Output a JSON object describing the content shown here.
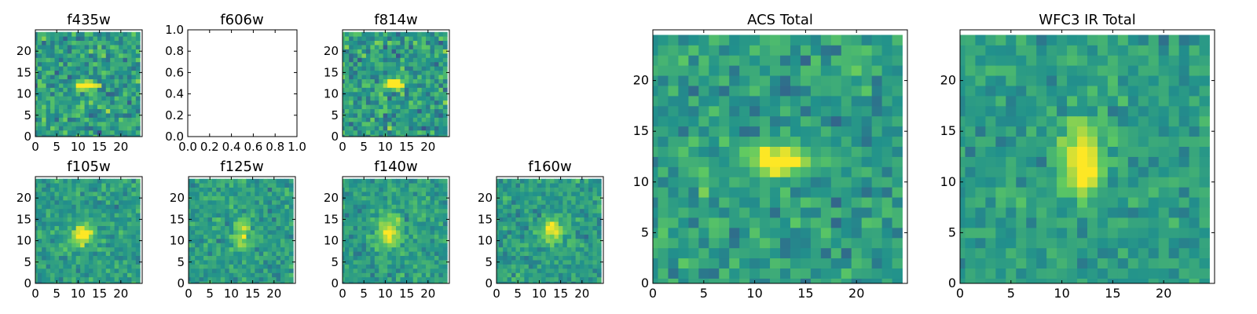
{
  "figure": {
    "description_note": "",
    "colormap_stops": [
      "#440154",
      "#3b528b",
      "#21918c",
      "#5ec962",
      "#fde725"
    ]
  },
  "chart_data": [
    {
      "type": "heatmap",
      "title": "f435w",
      "grid_size": 25,
      "xlim": [
        0,
        25
      ],
      "ylim": [
        0,
        25
      ],
      "xticks": [
        0,
        5,
        10,
        15,
        20
      ],
      "yticks": [
        0,
        5,
        10,
        15,
        20
      ],
      "source": {
        "cx": 12.5,
        "cy": 12.5,
        "sx": 1.4,
        "sy": 0.8,
        "amp": 0.75
      },
      "noise": 0.34,
      "seed": 11
    },
    {
      "type": "heatmap",
      "title": "f606w",
      "empty": true,
      "xlim": [
        0,
        1
      ],
      "ylim": [
        0,
        1
      ],
      "xticks": [
        "0.0",
        "0.2",
        "0.4",
        "0.6",
        "0.8",
        "1.0"
      ],
      "yticks": [
        "0.0",
        "0.2",
        "0.4",
        "0.6",
        "0.8",
        "1.0"
      ]
    },
    {
      "type": "heatmap",
      "title": "f814w",
      "grid_size": 25,
      "xlim": [
        0,
        25
      ],
      "ylim": [
        0,
        25
      ],
      "xticks": [
        0,
        5,
        10,
        15,
        20
      ],
      "yticks": [
        0,
        5,
        10,
        15,
        20
      ],
      "source": {
        "cx": 12.5,
        "cy": 13,
        "sx": 1.6,
        "sy": 0.7,
        "amp": 0.75
      },
      "noise": 0.34,
      "seed": 23
    },
    {
      "type": "heatmap",
      "title": "f105w",
      "grid_size": 25,
      "xlim": [
        0,
        25
      ],
      "ylim": [
        0,
        25
      ],
      "xticks": [
        0,
        5,
        10,
        15,
        20
      ],
      "yticks": [
        0,
        5,
        10,
        15,
        20
      ],
      "source": {
        "cx": 11.5,
        "cy": 12,
        "sx": 1.8,
        "sy": 1.8,
        "amp": 0.5
      },
      "noise": 0.22,
      "seed": 37
    },
    {
      "type": "heatmap",
      "title": "f125w",
      "grid_size": 25,
      "xlim": [
        0,
        25
      ],
      "ylim": [
        0,
        25
      ],
      "xticks": [
        0,
        5,
        10,
        15,
        20
      ],
      "yticks": [
        0,
        5,
        10,
        15,
        20
      ],
      "source": {
        "cx": 13,
        "cy": 12,
        "sx": 1.2,
        "sy": 2.2,
        "amp": 0.4
      },
      "noise": 0.22,
      "seed": 41
    },
    {
      "type": "heatmap",
      "title": "f140w",
      "grid_size": 25,
      "xlim": [
        0,
        25
      ],
      "ylim": [
        0,
        25
      ],
      "xticks": [
        0,
        5,
        10,
        15,
        20
      ],
      "yticks": [
        0,
        5,
        10,
        15,
        20
      ],
      "source": {
        "cx": 11.5,
        "cy": 12.5,
        "sx": 2.0,
        "sy": 2.5,
        "amp": 0.45
      },
      "noise": 0.22,
      "seed": 53
    },
    {
      "type": "heatmap",
      "title": "f160w",
      "grid_size": 25,
      "xlim": [
        0,
        25
      ],
      "ylim": [
        0,
        25
      ],
      "xticks": [
        0,
        5,
        10,
        15,
        20
      ],
      "yticks": [
        0,
        5,
        10,
        15,
        20
      ],
      "source": {
        "cx": 13.5,
        "cy": 13,
        "sx": 1.8,
        "sy": 1.8,
        "amp": 0.5
      },
      "noise": 0.22,
      "seed": 67
    },
    {
      "type": "heatmap",
      "title": "ACS Total",
      "grid_size": 25,
      "xlim": [
        0,
        25
      ],
      "ylim": [
        0,
        25
      ],
      "xticks": [
        0,
        5,
        10,
        15,
        20
      ],
      "yticks": [
        0,
        5,
        10,
        15,
        20
      ],
      "source": {
        "cx": 12.8,
        "cy": 12.5,
        "sx": 1.8,
        "sy": 0.9,
        "amp": 0.7
      },
      "noise": 0.26,
      "seed": 71
    },
    {
      "type": "heatmap",
      "title": "WFC3 IR Total",
      "grid_size": 25,
      "xlim": [
        0,
        25
      ],
      "ylim": [
        0,
        25
      ],
      "xticks": [
        0,
        5,
        10,
        15,
        20
      ],
      "yticks": [
        0,
        5,
        10,
        15,
        20
      ],
      "source": {
        "cx": 12.5,
        "cy": 12.5,
        "sx": 1.4,
        "sy": 2.4,
        "amp": 0.6
      },
      "noise": 0.2,
      "seed": 89
    }
  ]
}
